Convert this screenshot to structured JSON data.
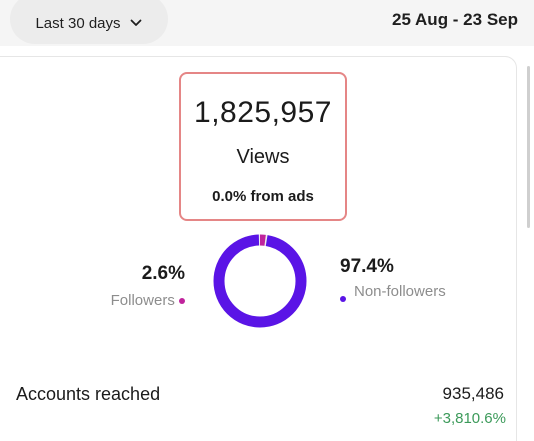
{
  "header": {
    "range_label": "Last 30 days",
    "date_range": "25 Aug - 23 Sep"
  },
  "views": {
    "count": "1,825,957",
    "label": "Views",
    "ads_text": "0.0% from ads"
  },
  "breakdown": {
    "followers": {
      "percent": "2.6%",
      "label": "Followers",
      "color": "#c0239c",
      "value": 2.6
    },
    "non_followers": {
      "percent": "97.4%",
      "label": "Non-followers",
      "color": "#5a14e6",
      "value": 97.4
    }
  },
  "accounts_reached": {
    "label": "Accounts reached",
    "value": "935,486",
    "change": "+3,810.6%",
    "change_color": "#3c9a5a"
  },
  "icons": {
    "range_chevron": "chevron-down-icon"
  }
}
